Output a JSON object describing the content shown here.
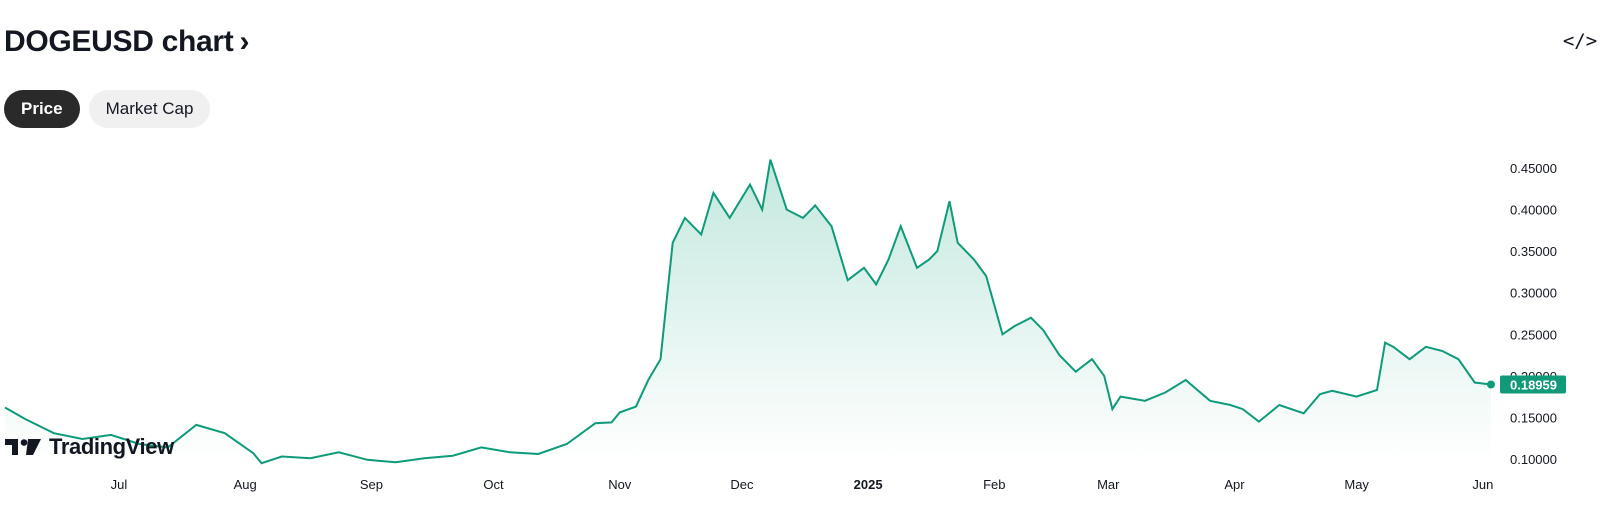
{
  "header": {
    "title": "DOGEUSD chart",
    "chevron": "›",
    "embed_label": "</>"
  },
  "tabs": [
    {
      "label": "Price",
      "active": true
    },
    {
      "label": "Market Cap",
      "active": false
    }
  ],
  "logo": {
    "text": "TradingView"
  },
  "colors": {
    "line": "#0d9b7a",
    "fill_top": "#bfe6dc",
    "tag_bg": "#119a7a",
    "tab_active_bg": "#2a2a2a"
  },
  "chart_data": {
    "type": "area",
    "title": "",
    "xlabel": "",
    "ylabel": "",
    "series": [
      {
        "x": [
          "2024-06-03",
          "2024-06-08",
          "2024-06-15",
          "2024-06-22",
          "2024-06-29",
          "2024-07-06",
          "2024-07-13",
          "2024-07-20",
          "2024-07-27",
          "2024-08-03",
          "2024-08-05",
          "2024-08-10",
          "2024-08-17",
          "2024-08-24",
          "2024-08-31",
          "2024-09-07",
          "2024-09-14",
          "2024-09-21",
          "2024-09-28",
          "2024-10-05",
          "2024-10-12",
          "2024-10-19",
          "2024-10-26",
          "2024-10-30",
          "2024-11-01",
          "2024-11-05",
          "2024-11-08",
          "2024-11-11",
          "2024-11-14",
          "2024-11-17",
          "2024-11-21",
          "2024-11-24",
          "2024-11-28",
          "2024-12-03",
          "2024-12-06",
          "2024-12-08",
          "2024-12-12",
          "2024-12-16",
          "2024-12-19",
          "2024-12-23",
          "2024-12-27",
          "2024-12-31",
          "2025-01-03",
          "2025-01-06",
          "2025-01-09",
          "2025-01-13",
          "2025-01-16",
          "2025-01-18",
          "2025-01-21",
          "2025-01-23",
          "2025-01-27",
          "2025-01-30",
          "2025-02-03",
          "2025-02-06",
          "2025-02-10",
          "2025-02-13",
          "2025-02-17",
          "2025-02-21",
          "2025-02-25",
          "2025-02-28",
          "2025-03-02",
          "2025-03-04",
          "2025-03-10",
          "2025-03-15",
          "2025-03-20",
          "2025-03-26",
          "2025-03-31",
          "2025-04-03",
          "2025-04-07",
          "2025-04-12",
          "2025-04-18",
          "2025-04-22",
          "2025-04-25",
          "2025-05-01",
          "2025-05-06",
          "2025-05-08",
          "2025-05-10",
          "2025-05-14",
          "2025-05-18",
          "2025-05-22",
          "2025-05-26",
          "2025-05-30",
          "2025-06-03"
        ],
        "values": [
          0.162,
          0.148,
          0.131,
          0.124,
          0.129,
          0.118,
          0.114,
          0.141,
          0.131,
          0.107,
          0.095,
          0.103,
          0.101,
          0.108,
          0.099,
          0.096,
          0.101,
          0.104,
          0.114,
          0.108,
          0.106,
          0.118,
          0.143,
          0.144,
          0.156,
          0.163,
          0.195,
          0.22,
          0.36,
          0.39,
          0.37,
          0.42,
          0.39,
          0.43,
          0.4,
          0.46,
          0.4,
          0.39,
          0.405,
          0.38,
          0.315,
          0.33,
          0.31,
          0.34,
          0.38,
          0.33,
          0.34,
          0.35,
          0.41,
          0.36,
          0.34,
          0.32,
          0.25,
          0.26,
          0.27,
          0.255,
          0.225,
          0.205,
          0.22,
          0.2,
          0.16,
          0.175,
          0.17,
          0.18,
          0.195,
          0.17,
          0.165,
          0.16,
          0.145,
          0.165,
          0.155,
          0.178,
          0.182,
          0.175,
          0.183,
          0.24,
          0.235,
          0.22,
          0.235,
          0.23,
          0.22,
          0.192,
          0.18959
        ]
      }
    ],
    "x_ticks": [
      "Jul",
      "Aug",
      "Sep",
      "Oct",
      "Nov",
      "Dec",
      "2025",
      "Feb",
      "Mar",
      "Apr",
      "May",
      "Jun"
    ],
    "y_ticks": [
      "0.10000",
      "0.15000",
      "0.20000",
      "0.25000",
      "0.30000",
      "0.35000",
      "0.40000",
      "0.45000"
    ],
    "ylim": [
      0.1,
      0.45
    ],
    "last_price": "0.18959",
    "grid": false,
    "legend": "none"
  }
}
